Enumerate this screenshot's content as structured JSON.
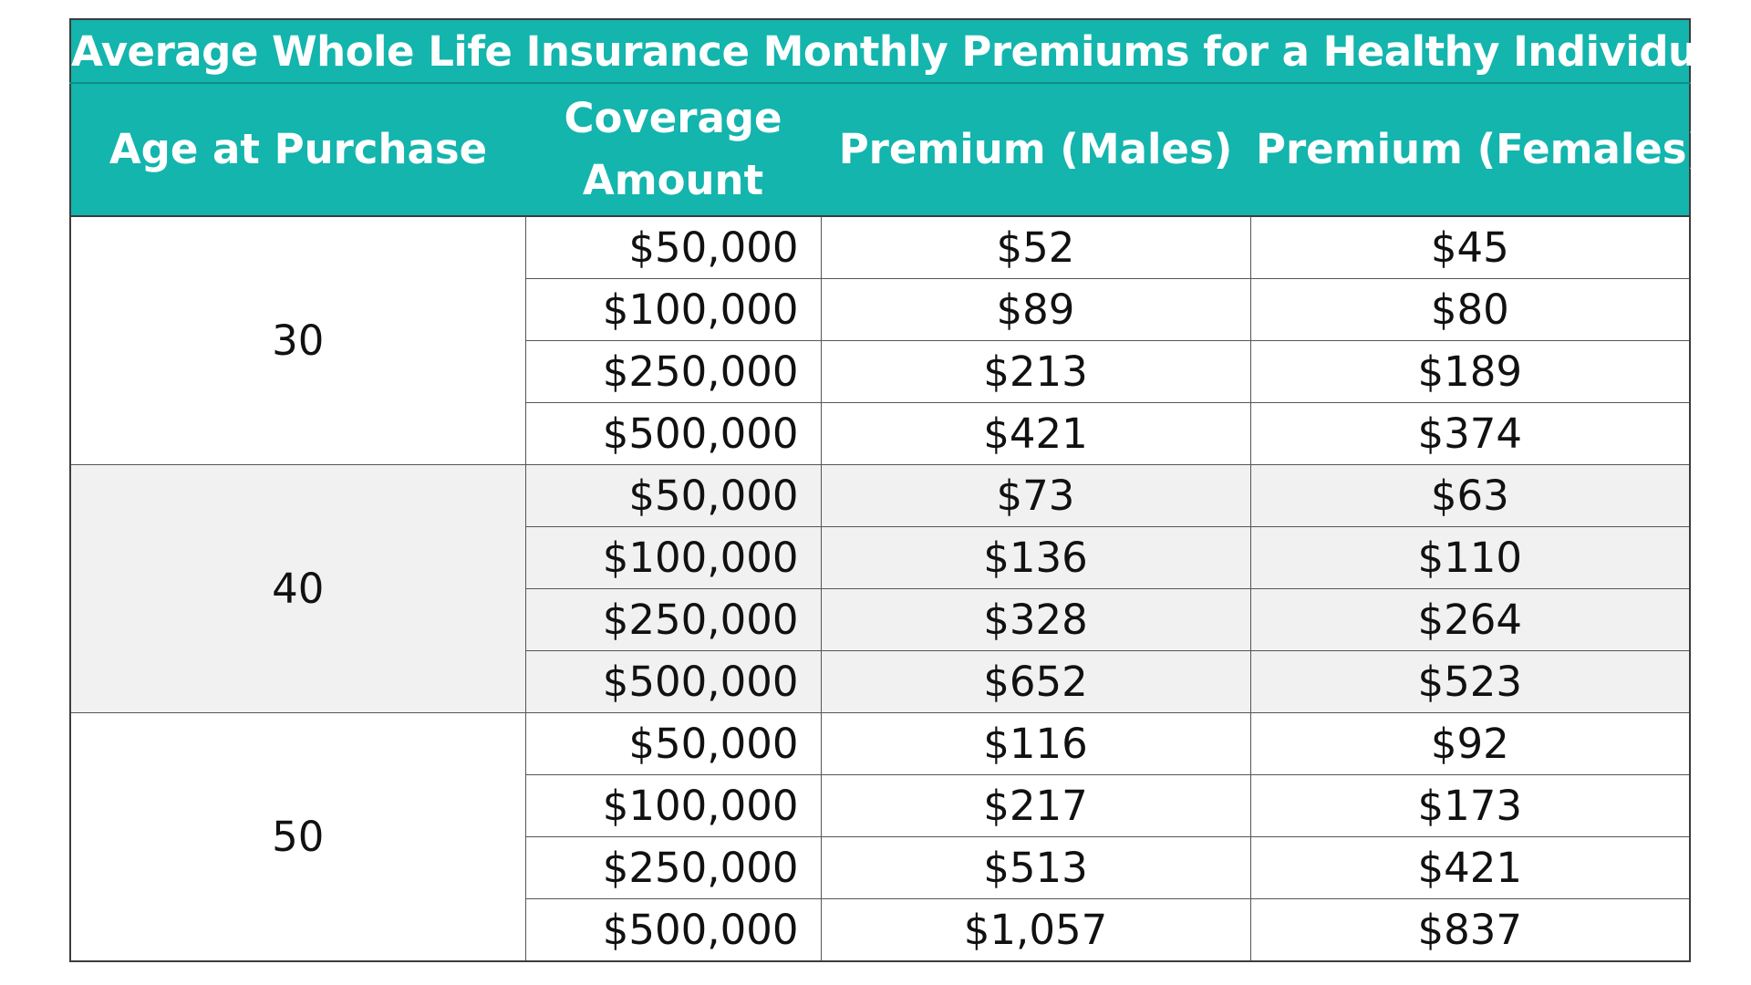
{
  "chart_data": {
    "type": "table",
    "title": "Average Whole Life Insurance Monthly Premiums for a Healthy Individual",
    "columns": [
      "Age at Purchase",
      "Coverage Amount",
      "Premium (Males)",
      "Premium (Females)"
    ],
    "header_lines": {
      "coverage_line1": "Coverage",
      "coverage_line2": "Amount"
    },
    "groups": [
      {
        "age": "30",
        "rows": [
          {
            "coverage": "$50,000",
            "male": "$52",
            "female": "$45"
          },
          {
            "coverage": "$100,000",
            "male": "$89",
            "female": "$80"
          },
          {
            "coverage": "$250,000",
            "male": "$213",
            "female": "$189"
          },
          {
            "coverage": "$500,000",
            "male": "$421",
            "female": "$374"
          }
        ]
      },
      {
        "age": "40",
        "rows": [
          {
            "coverage": "$50,000",
            "male": "$73",
            "female": "$63"
          },
          {
            "coverage": "$100,000",
            "male": "$136",
            "female": "$110"
          },
          {
            "coverage": "$250,000",
            "male": "$328",
            "female": "$264"
          },
          {
            "coverage": "$500,000",
            "male": "$652",
            "female": "$523"
          }
        ]
      },
      {
        "age": "50",
        "rows": [
          {
            "coverage": "$50,000",
            "male": "$116",
            "female": "$92"
          },
          {
            "coverage": "$100,000",
            "male": "$217",
            "female": "$173"
          },
          {
            "coverage": "$250,000",
            "male": "$513",
            "female": "$421"
          },
          {
            "coverage": "$500,000",
            "male": "$1,057",
            "female": "$837"
          }
        ]
      }
    ],
    "colors": {
      "header_bg": "#13b5ad",
      "header_text": "#ffffff",
      "shaded_row_bg": "#f1f1f1"
    }
  }
}
